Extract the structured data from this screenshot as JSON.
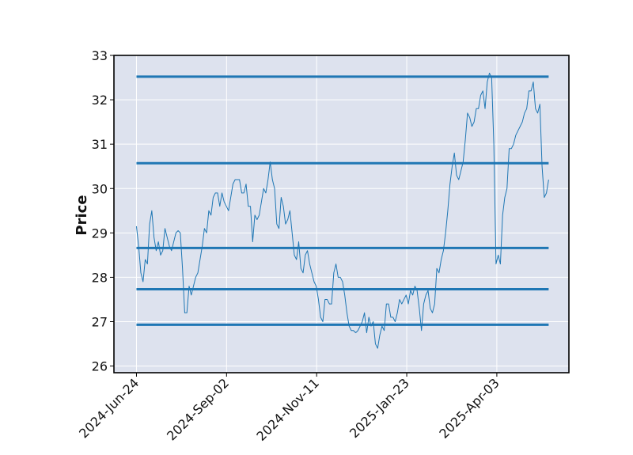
{
  "chart_data": {
    "type": "line",
    "title": "",
    "xlabel": "",
    "ylabel": "Price",
    "x_tick_labels": [
      "2024-Jun-24",
      "2024-Sep-02",
      "2024-Nov-11",
      "2025-Jan-23",
      "2025-Apr-03"
    ],
    "y_ticks": [
      26,
      27,
      28,
      29,
      30,
      31,
      32,
      33
    ],
    "ylim": [
      25.85,
      33
    ],
    "x_index_range": [
      -5,
      96
    ],
    "x_tick_index": [
      0,
      20,
      40,
      60,
      80
    ],
    "grid": true,
    "background_color": "#dde2ee",
    "line_color": "#1f77b4",
    "hline_color": "#1f77b4",
    "horizontal_levels": [
      32.52,
      30.57,
      28.66,
      27.73,
      26.93
    ],
    "level_x_range": [
      0,
      91.5
    ],
    "series": [
      {
        "values": [
          29.15,
          28.7,
          28.1,
          27.9,
          28.4,
          28.3,
          29.2,
          29.5,
          28.9,
          28.6,
          28.8,
          28.5,
          28.6,
          29.1,
          28.9,
          28.7,
          28.6,
          28.8,
          29.0,
          29.05,
          29.0,
          28.2,
          27.2,
          27.2,
          27.8,
          27.6,
          27.8,
          28.0,
          28.1,
          28.4,
          28.7,
          29.1,
          29.0,
          29.5,
          29.4,
          29.8,
          29.9,
          29.9,
          29.6,
          29.9,
          29.7,
          29.6,
          29.5,
          29.8,
          30.1,
          30.2,
          30.2,
          30.2,
          29.9,
          29.9,
          30.1,
          29.6,
          29.6,
          28.8,
          29.4,
          29.3,
          29.4,
          29.7,
          30.0,
          29.9,
          30.2,
          30.6,
          30.2,
          30.0,
          29.2,
          29.1,
          29.8,
          29.6,
          29.2,
          29.3,
          29.5,
          29.0,
          28.5,
          28.4,
          28.8,
          28.2,
          28.1,
          28.5,
          28.6,
          28.3,
          28.1,
          27.9,
          27.8,
          27.5,
          27.1,
          27.0,
          27.5,
          27.5,
          27.4,
          27.4,
          28.1,
          28.3,
          28.0,
          28.0,
          27.9,
          27.6,
          27.2,
          26.9,
          26.8,
          26.8,
          26.75,
          26.8,
          26.9,
          27.0,
          27.2,
          26.75,
          27.1,
          26.9,
          27.0,
          26.5,
          26.4,
          26.7,
          26.9,
          26.8,
          27.4,
          27.4,
          27.1,
          27.1,
          27.0,
          27.2,
          27.5,
          27.4,
          27.5,
          27.6,
          27.4,
          27.7,
          27.6,
          27.8,
          27.7,
          27.3,
          26.8,
          27.4,
          27.6,
          27.7,
          27.3,
          27.2,
          27.4,
          28.2,
          28.1,
          28.4,
          28.6,
          29.0,
          29.5,
          30.1,
          30.5,
          30.8,
          30.3,
          30.2,
          30.4,
          30.6,
          31.1,
          31.7,
          31.6,
          31.4,
          31.5,
          31.8,
          31.8,
          32.1,
          32.2,
          31.8,
          32.4,
          32.6,
          32.5,
          31.0,
          28.3,
          28.5,
          28.3,
          29.4,
          29.8,
          30.0,
          30.9,
          30.9,
          31.0,
          31.2,
          31.3,
          31.4,
          31.5,
          31.7,
          31.8,
          32.2,
          32.2,
          32.4,
          31.8,
          31.7,
          31.9,
          30.5,
          29.8,
          29.9,
          30.2
        ]
      }
    ]
  }
}
